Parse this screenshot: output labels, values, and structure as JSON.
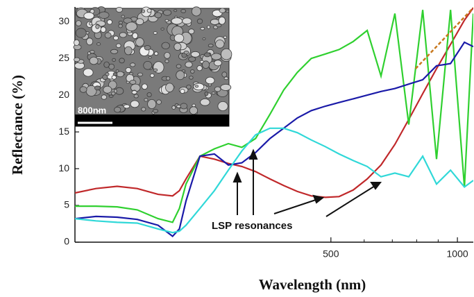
{
  "chart_data": {
    "type": "line",
    "xlabel": "Wavelength (nm)",
    "ylabel": "Reflectance (%)",
    "xscale": "log",
    "xlim": [
      123,
      1091
    ],
    "ylim": [
      0,
      32
    ],
    "xticks": [
      500,
      1000
    ],
    "xminor_ticks": [
      600,
      700,
      800,
      900
    ],
    "yticks": [
      0,
      5,
      10,
      15,
      20,
      25,
      30
    ],
    "x": [
      123,
      138,
      155,
      173,
      194,
      210,
      218,
      226,
      244,
      264,
      285,
      307,
      331,
      358,
      386,
      416,
      449,
      485,
      523,
      565,
      610,
      658,
      710,
      766,
      827,
      892,
      963,
      1039,
      1091
    ],
    "series": [
      {
        "color": "#c0282a",
        "values": [
          6.7,
          7.3,
          7.6,
          7.3,
          6.5,
          6.3,
          7.0,
          8.6,
          11.7,
          11.3,
          10.7,
          10.3,
          9.6,
          8.6,
          7.7,
          6.9,
          6.3,
          6.1,
          6.2,
          7.1,
          8.6,
          10.5,
          13.3,
          16.7,
          20.2,
          23.6,
          26.9,
          30.2,
          31.9
        ]
      },
      {
        "color": "#2fd02f",
        "values": [
          4.9,
          4.9,
          4.8,
          4.4,
          3.2,
          2.7,
          4.6,
          7.9,
          11.7,
          12.7,
          13.4,
          12.9,
          14.1,
          17.4,
          20.7,
          23.1,
          25.0,
          25.6,
          26.2,
          27.3,
          28.8,
          22.6,
          31.1,
          16.0,
          31.6,
          11.3,
          31.6,
          7.5,
          31.1
        ]
      },
      {
        "color": "#1a1aa8",
        "values": [
          3.2,
          3.5,
          3.4,
          3.1,
          2.3,
          0.8,
          1.8,
          5.6,
          11.7,
          12.0,
          10.5,
          10.8,
          12.2,
          14.1,
          15.5,
          16.9,
          17.9,
          18.5,
          19.0,
          19.5,
          20.0,
          20.5,
          20.9,
          21.5,
          22.1,
          24.0,
          24.3,
          27.2,
          26.6
        ]
      },
      {
        "color": "#30d8d8",
        "values": [
          3.2,
          2.9,
          2.7,
          2.6,
          1.8,
          1.3,
          1.5,
          2.3,
          4.6,
          7.0,
          9.8,
          12.4,
          14.6,
          15.5,
          15.5,
          14.9,
          13.9,
          13.0,
          12.0,
          11.1,
          10.3,
          8.9,
          9.4,
          8.9,
          11.7,
          7.9,
          9.8,
          7.5,
          8.4
        ]
      }
    ],
    "fit_line": {
      "color": "#c8781e",
      "x": [
        795,
        1091
      ],
      "values": [
        23.6,
        31.9
      ]
    },
    "annotation": "LSP resonances",
    "inset_scale_label": "800nm"
  }
}
